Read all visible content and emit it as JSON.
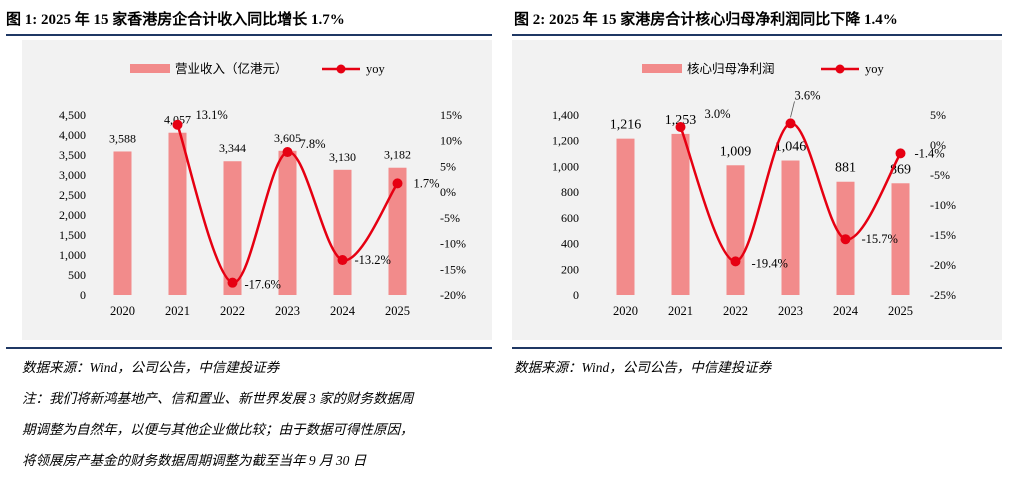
{
  "figures": [
    {
      "title": "图 1: 2025 年 15 家香港房企合计收入同比增长 1.7%",
      "source": "数据来源：Wind，公司公告，中信建投证券",
      "notes": [
        "注：我们将新鸿基地产、信和置业、新世界发展 3 家的财务数据周",
        "期调整为自然年，以便与其他企业做比较；由于数据可得性原因，",
        "将领展房产基金的财务数据周期调整为截至当年 9 月 30 日"
      ]
    },
    {
      "title": "图 2: 2025 年 15 家港房合计核心归母净利润同比下降 1.4%",
      "source": "数据来源：Wind，公司公告，中信建投证券",
      "notes": []
    }
  ],
  "colors": {
    "bar": "#f28b8b",
    "line": "#e60012",
    "rule": "#1f3864",
    "background": "#f2f2f2"
  },
  "chart_data": [
    {
      "type": "bar",
      "categories": [
        "2020",
        "2021",
        "2022",
        "2023",
        "2024",
        "2025"
      ],
      "series": [
        {
          "name": "营业收入（亿港元）",
          "kind": "bar",
          "axis": "left",
          "values": [
            3588,
            4057,
            3344,
            3605,
            3130,
            3182
          ],
          "labels": [
            "3,588",
            "4,057",
            "3,344",
            "3,605",
            "3,130",
            "3,182"
          ]
        },
        {
          "name": "yoy",
          "kind": "line",
          "axis": "right",
          "smooth": true,
          "values": [
            null,
            13.1,
            -17.6,
            7.8,
            -13.2,
            1.7
          ],
          "labels": [
            "",
            "13.1%",
            "-17.6%",
            "7.8%",
            "-13.2%",
            "1.7%"
          ]
        }
      ],
      "ylim_left": [
        0,
        4500
      ],
      "left_ticks": [
        "4,500",
        "4,000",
        "3,500",
        "3,000",
        "2,500",
        "2,000",
        "1,500",
        "1,000",
        "500",
        "0"
      ],
      "ylim_right": [
        -20,
        15
      ],
      "right_ticks": [
        "15%",
        "10%",
        "5%",
        "0%",
        "-5%",
        "-10%",
        "-15%",
        "-20%"
      ],
      "legend_position": "top",
      "grid": false
    },
    {
      "type": "bar",
      "categories": [
        "2020",
        "2021",
        "2022",
        "2023",
        "2024",
        "2025"
      ],
      "series": [
        {
          "name": "核心归母净利润",
          "kind": "bar",
          "axis": "left",
          "values": [
            1216,
            1253,
            1009,
            1046,
            881,
            869
          ],
          "labels": [
            "1,216",
            "1,253",
            "1,009",
            "1,046",
            "881",
            "869"
          ]
        },
        {
          "name": "yoy",
          "kind": "line",
          "axis": "right",
          "smooth": true,
          "values": [
            null,
            3.0,
            -19.4,
            3.6,
            -15.7,
            -1.4
          ],
          "labels": [
            "",
            "3.0%",
            "-19.4%",
            "3.6%",
            "-15.7%",
            "-1.4%"
          ]
        }
      ],
      "ylim_left": [
        0,
        1400
      ],
      "left_ticks": [
        "1,400",
        "1,200",
        "1,000",
        "800",
        "600",
        "400",
        "200",
        "0"
      ],
      "ylim_right": [
        -25,
        5
      ],
      "right_ticks": [
        "5%",
        "0%",
        "-5%",
        "-10%",
        "-15%",
        "-20%",
        "-25%"
      ],
      "legend_position": "top",
      "grid": false
    }
  ]
}
